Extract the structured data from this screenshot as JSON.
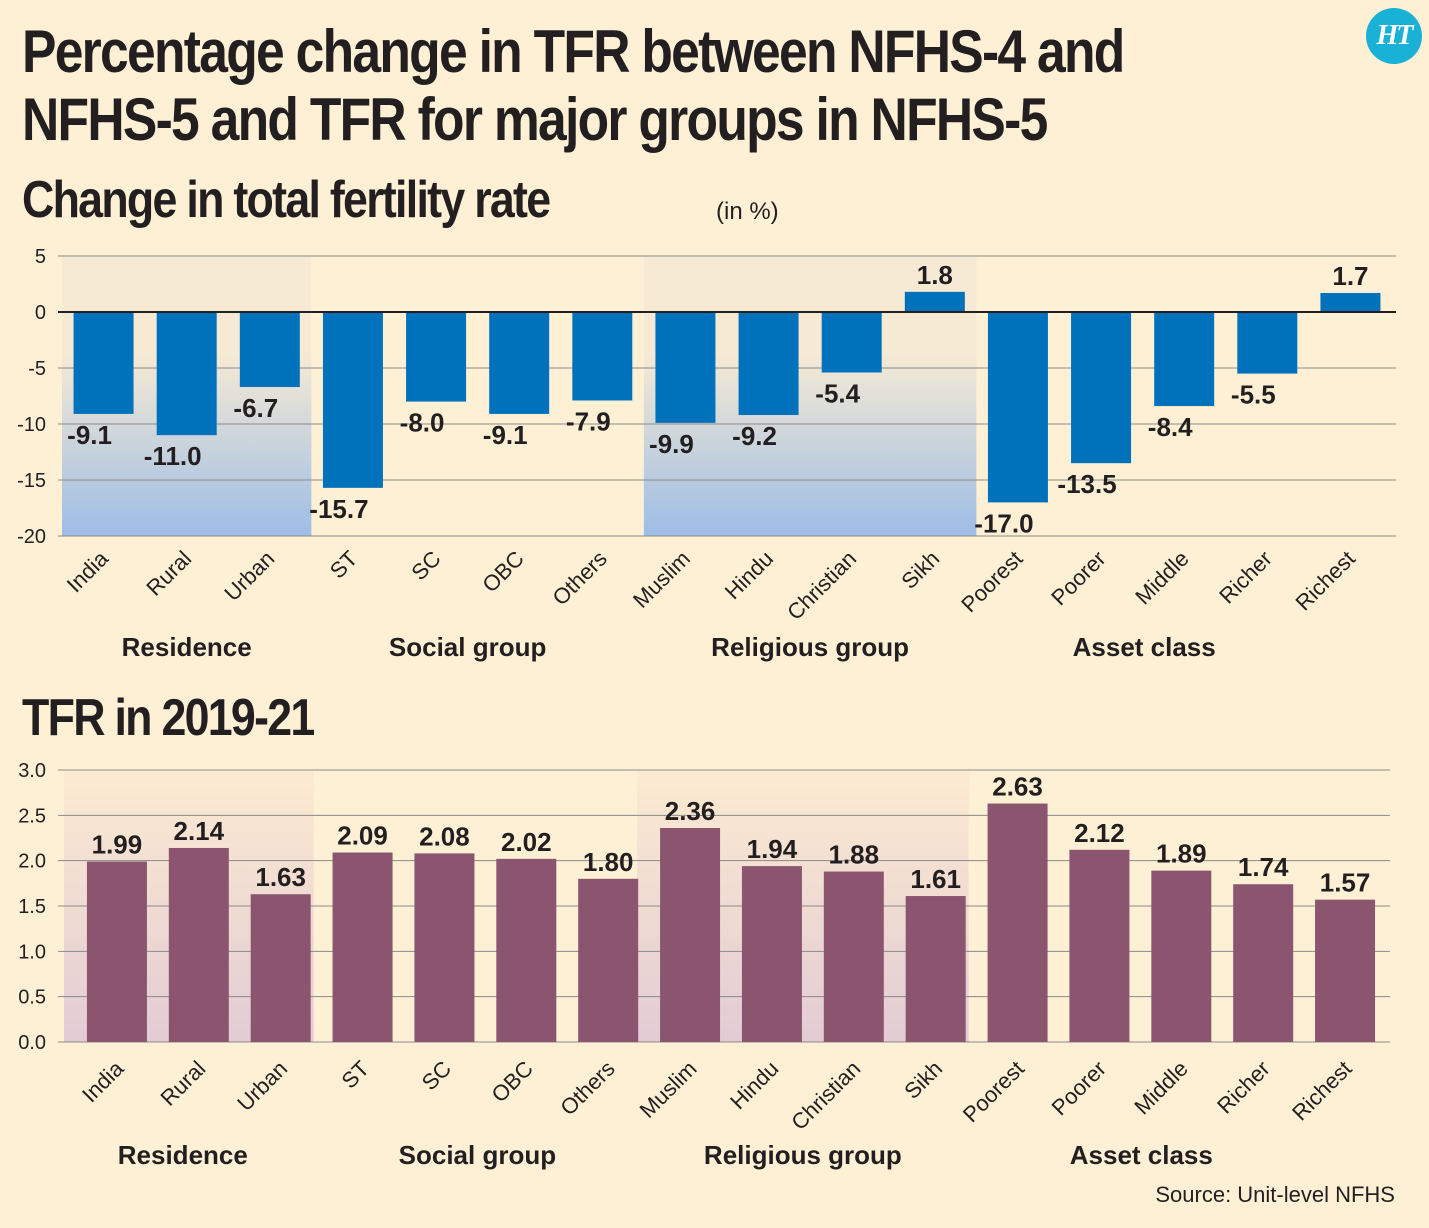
{
  "title_line1": "Percentage change in TFR between NFHS-4 and",
  "title_line2": "NFHS-5 and TFR for major groups in NFHS-5",
  "logo_text": "HT",
  "source": "Source: Unit-level NFHS",
  "colors": {
    "background": "#fdf0d5",
    "change_bar": "#0072bc",
    "tfr_bar": "#8b5570",
    "logo": "#1ab1d6"
  },
  "chart_data": [
    {
      "type": "bar",
      "title": "Change in total fertility rate",
      "unit": "(in %)",
      "categories": [
        "India",
        "Rural",
        "Urban",
        "ST",
        "SC",
        "OBC",
        "Others",
        "Muslim",
        "Hindu",
        "Christian",
        "Sikh",
        "Poorest",
        "Poorer",
        "Middle",
        "Richer",
        "Richest"
      ],
      "values": [
        -9.1,
        -11.0,
        -6.7,
        -15.7,
        -8.0,
        -9.1,
        -7.9,
        -9.9,
        -9.2,
        -5.4,
        1.8,
        -17.0,
        -13.5,
        -8.4,
        -5.5,
        1.7
      ],
      "labels": [
        "-9.1",
        "-11.0",
        "-6.7",
        "-15.7",
        "-8.0",
        "-9.1",
        "-7.9",
        "-9.9",
        "-9.2",
        "-5.4",
        "1.8",
        "-17.0",
        "-13.5",
        "-8.4",
        "-5.5",
        "1.7"
      ],
      "ylim": [
        -20,
        5
      ],
      "yticks": [
        5,
        0,
        -5,
        -10,
        -15,
        -20
      ],
      "ytick_labels": [
        "5",
        "0",
        "-5",
        "-10",
        "-15",
        "-20"
      ],
      "groups": [
        {
          "name": "Residence",
          "first": 0,
          "last": 2,
          "shaded": true
        },
        {
          "name": "Social group",
          "first": 3,
          "last": 6,
          "shaded": false
        },
        {
          "name": "Religious group",
          "first": 7,
          "last": 10,
          "shaded": true
        },
        {
          "name": "Asset class",
          "first": 11,
          "last": 15,
          "shaded": false
        }
      ]
    },
    {
      "type": "bar",
      "title": "TFR in 2019-21",
      "categories": [
        "India",
        "Rural",
        "Urban",
        "ST",
        "SC",
        "OBC",
        "Others",
        "Muslim",
        "Hindu",
        "Christian",
        "Sikh",
        "Poorest",
        "Poorer",
        "Middle",
        "Richer",
        "Richest"
      ],
      "values": [
        1.99,
        2.14,
        1.63,
        2.09,
        2.08,
        2.02,
        1.8,
        2.36,
        1.94,
        1.88,
        1.61,
        2.63,
        2.12,
        1.89,
        1.74,
        1.57
      ],
      "labels": [
        "1.99",
        "2.14",
        "1.63",
        "2.09",
        "2.08",
        "2.02",
        "1.80",
        "2.36",
        "1.94",
        "1.88",
        "1.61",
        "2.63",
        "2.12",
        "1.89",
        "1.74",
        "1.57"
      ],
      "ylim": [
        0,
        3.0
      ],
      "yticks": [
        3.0,
        2.5,
        2.0,
        1.5,
        1.0,
        0.5,
        0.0
      ],
      "ytick_labels": [
        "3.0",
        "2.5",
        "2.0",
        "1.5",
        "1.0",
        "0.5",
        "0.0"
      ],
      "groups": [
        {
          "name": "Residence",
          "first": 0,
          "last": 2,
          "shaded": true
        },
        {
          "name": "Social group",
          "first": 3,
          "last": 6,
          "shaded": false
        },
        {
          "name": "Religious group",
          "first": 7,
          "last": 10,
          "shaded": true
        },
        {
          "name": "Asset class",
          "first": 11,
          "last": 15,
          "shaded": false
        }
      ]
    }
  ]
}
